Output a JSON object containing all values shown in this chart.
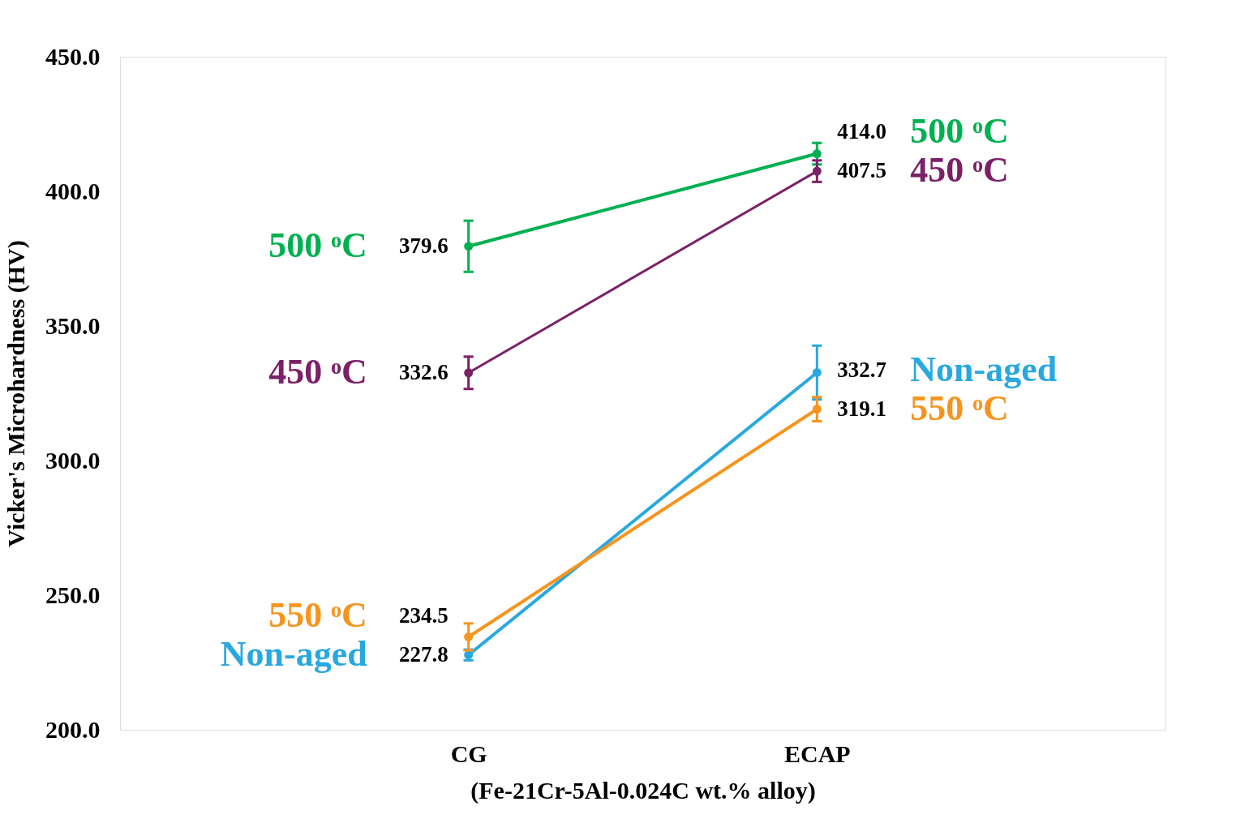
{
  "chart_data": {
    "type": "line",
    "xlabel": "(Fe-21Cr-5Al-0.024C wt.% alloy)",
    "ylabel": "Vicker's Microhardness (HV)",
    "categories": [
      "CG",
      "ECAP"
    ],
    "series": [
      {
        "name": "500 ᵒC",
        "color": "#00b050",
        "values": [
          379.6,
          414.0
        ],
        "value_labels": [
          "379.6",
          "414.0"
        ],
        "errors": [
          9.5,
          4
        ]
      },
      {
        "name": "450 ᵒC",
        "color": "#7b2168",
        "values": [
          332.6,
          407.5
        ],
        "errors": [
          6,
          4
        ]
      },
      {
        "name": "Non-aged",
        "color": "#29a8e0",
        "values": [
          227.8,
          332.7
        ],
        "errors": [
          2,
          10
        ]
      },
      {
        "name": "550 ᵒC",
        "color": "#f7941d",
        "values": [
          234.5,
          319.1
        ],
        "errors": [
          5,
          4.5
        ]
      }
    ],
    "ylim": [
      200,
      450
    ],
    "yticks": [
      {
        "value": 200,
        "label": "200.0"
      },
      {
        "value": 250,
        "label": "250.0"
      },
      {
        "value": 300,
        "label": "300.0"
      },
      {
        "value": 350,
        "label": "350.0"
      },
      {
        "value": 400,
        "label": "400.0"
      },
      {
        "value": 450,
        "label": "450.0"
      }
    ],
    "data_labels": true,
    "marker": "circle",
    "line_style": "solid",
    "grid": false,
    "legend": false
  }
}
